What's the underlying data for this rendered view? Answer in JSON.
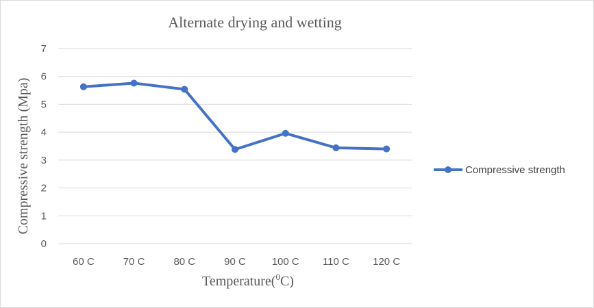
{
  "chart_data": {
    "type": "line",
    "title": "Alternate drying and wetting",
    "xlabel": "Temperature(0C)",
    "ylabel": "Compressive strength (Mpa)",
    "categories": [
      "60 C",
      "70 C",
      "80 C",
      "90 C",
      "100 C",
      "110 C",
      "120 C"
    ],
    "series": [
      {
        "name": "Compressive strength",
        "values": [
          5.63,
          5.76,
          5.54,
          3.38,
          3.96,
          3.44,
          3.4
        ]
      }
    ],
    "ylim": [
      0,
      7
    ],
    "yticks": [
      "0",
      "1",
      "2",
      "3",
      "4",
      "5",
      "6",
      "7"
    ],
    "grid": true,
    "legend": "right",
    "colors": {
      "series": "#4472C4",
      "grid": "#D9D9D9",
      "text": "#595959",
      "border": "#D9D9D9"
    }
  }
}
